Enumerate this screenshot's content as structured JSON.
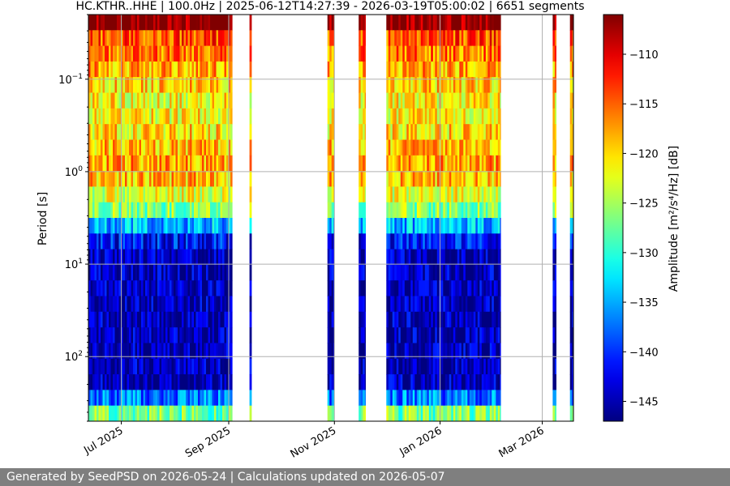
{
  "chart_data": {
    "type": "heatmap",
    "title": "HC.KTHR..HHE | 100.0Hz | 2025-06-12T14:27:39 - 2026-03-19T05:00:02 | 6651 segments",
    "ylabel": "Period [s]",
    "y_scale": "log",
    "y_inverted": true,
    "ylim": [
      0.02,
      500
    ],
    "y_ticks": [
      {
        "value": 0.1,
        "label": "10^-1"
      },
      {
        "value": 1,
        "label": "10^0"
      },
      {
        "value": 10,
        "label": "10^1"
      },
      {
        "value": 100,
        "label": "10^2"
      }
    ],
    "xlim": [
      "2025-06-12",
      "2026-03-19"
    ],
    "x_ticks": [
      {
        "date": "2025-07-01",
        "label": "Jul 2025"
      },
      {
        "date": "2025-09-01",
        "label": "Sep 2025"
      },
      {
        "date": "2025-11-01",
        "label": "Nov 2025"
      },
      {
        "date": "2026-01-01",
        "label": "Jan 2026"
      },
      {
        "date": "2026-03-01",
        "label": "Mar 2026"
      }
    ],
    "grid": true,
    "colorbar": {
      "label": "Amplitude [m²/s⁴/Hz] [dB]",
      "colormap": "jet",
      "range": [
        -147,
        -106
      ],
      "ticks": [
        -110,
        -115,
        -120,
        -125,
        -130,
        -135,
        -140,
        -145
      ],
      "tick_labels": [
        "−110",
        "−115",
        "−120",
        "−125",
        "−130",
        "−135",
        "−140",
        "−145"
      ]
    },
    "data_intervals": [
      [
        "2025-06-12",
        "2025-09-03"
      ],
      [
        "2025-09-13",
        "2025-09-14"
      ],
      [
        "2025-10-28",
        "2025-11-01"
      ],
      [
        "2025-11-15",
        "2025-11-19"
      ],
      [
        "2025-12-01",
        "2026-02-05"
      ],
      [
        "2026-03-07",
        "2026-03-09"
      ],
      [
        "2026-03-17",
        "2026-03-19"
      ]
    ]
  },
  "footer": {
    "text": "Generated by SeedPSD on 2026-05-24 | Calculations updated on 2026-05-07"
  }
}
